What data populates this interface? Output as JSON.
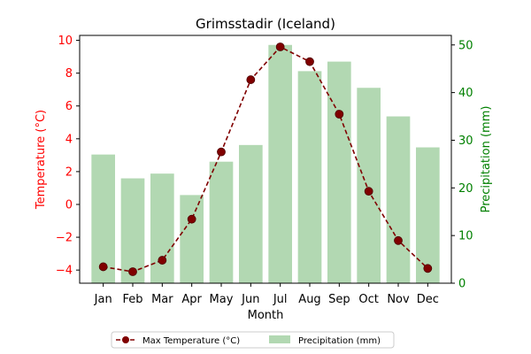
{
  "chart_data": {
    "type": "bar+line",
    "title": "Grimsstadir (Iceland)",
    "xlabel": "Month",
    "categories": [
      "Jan",
      "Feb",
      "Mar",
      "Apr",
      "May",
      "Jun",
      "Jul",
      "Aug",
      "Sep",
      "Oct",
      "Nov",
      "Dec"
    ],
    "left_axis": {
      "label": "Temperature (°C)",
      "color": "#ff0000",
      "ylim": [
        -4.8,
        10.3
      ],
      "ticks": [
        -4,
        -2,
        0,
        2,
        4,
        6,
        8,
        10
      ],
      "tick_labels": [
        "−4",
        "−2",
        "0",
        "2",
        "4",
        "6",
        "8",
        "10"
      ]
    },
    "right_axis": {
      "label": "Precipitation (mm)",
      "color": "#008000",
      "ylim": [
        0,
        52
      ],
      "ticks": [
        0,
        10,
        20,
        30,
        40,
        50
      ],
      "tick_labels": [
        "0",
        "10",
        "20",
        "30",
        "40",
        "50"
      ]
    },
    "series": [
      {
        "name": "Max Temperature (°C)",
        "kind": "line",
        "axis": "left",
        "color": "#800000",
        "values": [
          -3.8,
          -4.1,
          -3.4,
          -0.9,
          3.2,
          7.6,
          9.6,
          8.7,
          5.5,
          0.8,
          -2.2,
          -3.9
        ]
      },
      {
        "name": "Precipitation (mm)",
        "kind": "bar",
        "axis": "right",
        "color": "#b2d8b2",
        "values": [
          27,
          22,
          23,
          18.5,
          25.5,
          29,
          50,
          44.5,
          46.5,
          41,
          35,
          28.5
        ]
      }
    ],
    "legend_position": "bottom-center",
    "grid": false
  }
}
